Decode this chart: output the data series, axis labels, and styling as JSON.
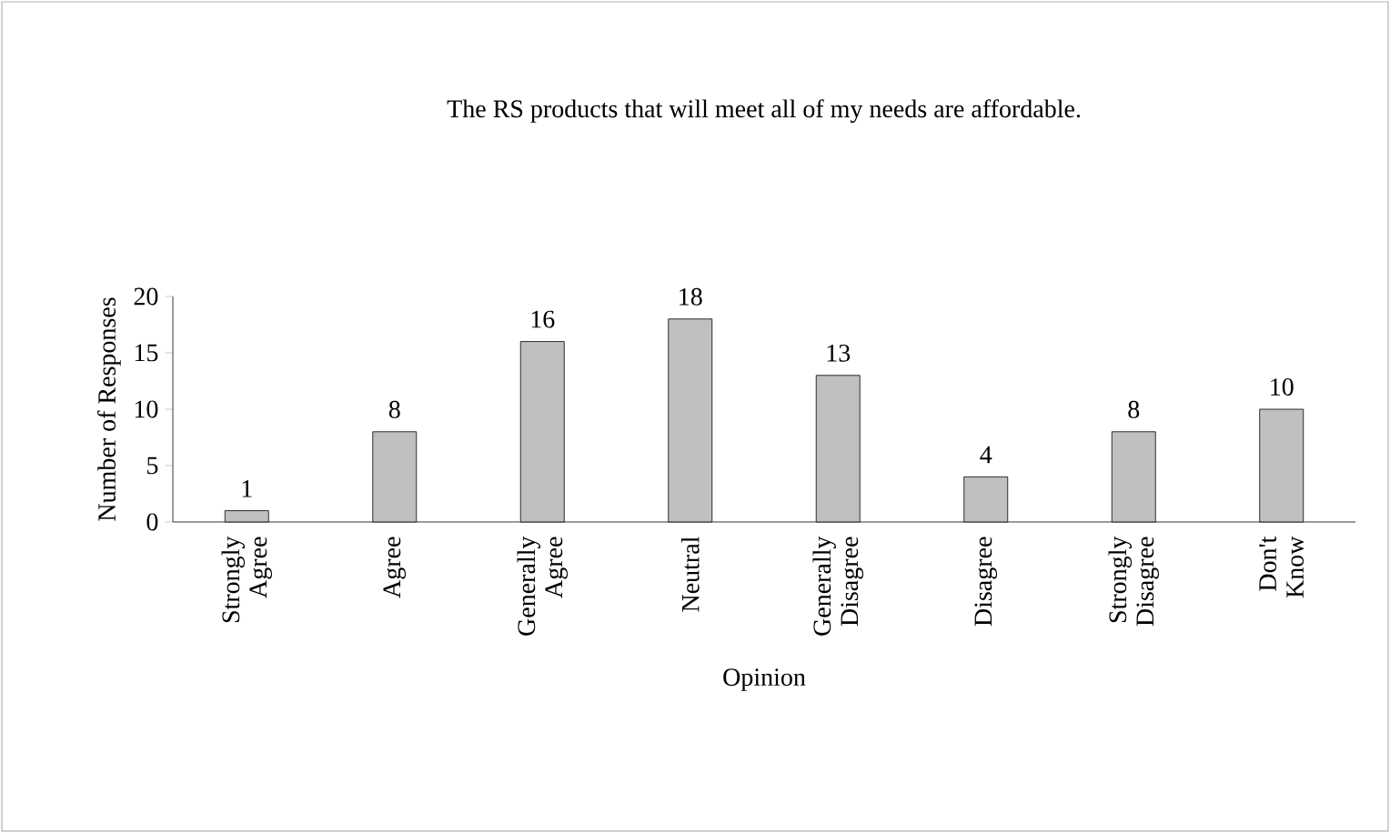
{
  "chart_data": {
    "type": "bar",
    "title": "The RS products that will meet all of my needs are affordable.",
    "xlabel": "Opinion",
    "ylabel": "Number of Responses",
    "categories": [
      "Strongly Agree",
      "Agree",
      "Generally Agree",
      "Neutral",
      "Generally Disagree",
      "Disagree",
      "Strongly Disagree",
      "Don't Know"
    ],
    "values": [
      1,
      8,
      16,
      18,
      13,
      4,
      8,
      10
    ],
    "color": "#c0c0c0",
    "ylim": [
      0,
      20
    ],
    "yticks": [
      0,
      5,
      10,
      15,
      20
    ],
    "grid": false,
    "data_labels": true
  }
}
